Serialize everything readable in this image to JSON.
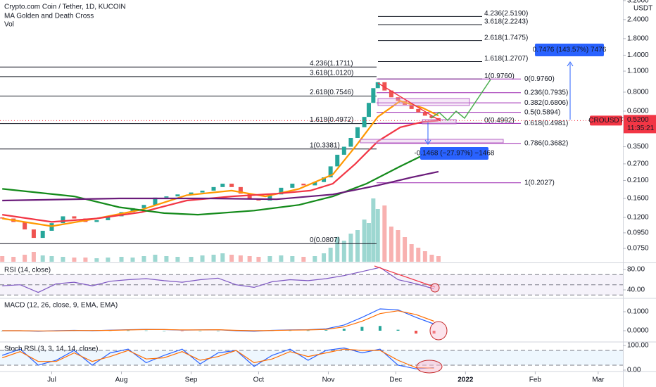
{
  "chart_data": [
    {
      "type": "candlestick",
      "title": "Crypto.com Coin / Tether, 1D, KUCOIN",
      "indicators": [
        "MA Golden and Death Cross",
        "Vol"
      ],
      "y_unit": "USDT",
      "log": true,
      "xlim": [
        -23,
        254
      ],
      "ylim": [
        0.0613,
        3.23
      ],
      "yticks": [
        {
          "value": 3.2,
          "label": "3.2000"
        },
        {
          "value": 2.4,
          "label": "2.4000"
        },
        {
          "value": 1.8,
          "label": "1.8000"
        },
        {
          "value": 1.4,
          "label": "1.4000"
        },
        {
          "value": 1.1,
          "label": "1.1000"
        },
        {
          "value": 0.8,
          "label": "0.8000"
        },
        {
          "value": 0.6,
          "label": "0.6000"
        },
        {
          "value": 0.35,
          "label": "0.3500"
        },
        {
          "value": 0.27,
          "label": "0.2700"
        },
        {
          "value": 0.21,
          "label": "0.2100"
        },
        {
          "value": 0.16,
          "label": "0.1600"
        },
        {
          "value": 0.12,
          "label": "0.1200"
        },
        {
          "value": 0.095,
          "label": "0.0950"
        },
        {
          "value": 0.075,
          "label": "0.0750"
        }
      ],
      "colors": {
        "up": "#26a69a",
        "down": "#ef5350"
      },
      "x": [
        -22,
        -17,
        -12,
        -8,
        -4,
        0,
        5,
        10,
        15,
        20,
        25,
        31,
        36,
        41,
        46,
        51,
        56,
        62,
        67,
        72,
        76,
        80,
        84,
        88,
        92,
        97,
        102,
        107,
        112,
        117,
        121,
        124,
        127,
        130,
        133,
        136,
        139,
        141,
        143,
        145,
        148,
        151,
        154,
        157,
        160,
        163,
        166,
        169,
        172
      ],
      "open": [
        0.12,
        0.118,
        0.112,
        0.1,
        0.088,
        0.098,
        0.11,
        0.122,
        0.118,
        0.112,
        0.115,
        0.122,
        0.13,
        0.138,
        0.145,
        0.162,
        0.165,
        0.17,
        0.175,
        0.18,
        0.19,
        0.2,
        0.19,
        0.172,
        0.158,
        0.155,
        0.17,
        0.188,
        0.2,
        0.195,
        0.205,
        0.22,
        0.26,
        0.31,
        0.35,
        0.4,
        0.47,
        0.55,
        0.68,
        0.85,
        0.93,
        0.82,
        0.74,
        0.7,
        0.66,
        0.62,
        0.59,
        0.56,
        0.54
      ],
      "close": [
        0.118,
        0.112,
        0.1,
        0.088,
        0.098,
        0.11,
        0.122,
        0.118,
        0.112,
        0.115,
        0.122,
        0.13,
        0.138,
        0.145,
        0.162,
        0.165,
        0.17,
        0.175,
        0.18,
        0.19,
        0.2,
        0.19,
        0.172,
        0.158,
        0.155,
        0.17,
        0.188,
        0.2,
        0.195,
        0.205,
        0.22,
        0.26,
        0.31,
        0.35,
        0.4,
        0.47,
        0.55,
        0.68,
        0.85,
        0.93,
        0.82,
        0.74,
        0.7,
        0.66,
        0.62,
        0.59,
        0.56,
        0.54,
        0.52
      ],
      "volume": [
        8,
        7,
        10,
        14,
        9,
        8,
        7,
        6,
        6,
        5,
        6,
        7,
        6,
        8,
        10,
        8,
        7,
        7,
        9,
        10,
        12,
        10,
        9,
        8,
        7,
        8,
        9,
        8,
        7,
        8,
        12,
        20,
        35,
        30,
        40,
        45,
        60,
        55,
        90,
        75,
        80,
        50,
        45,
        35,
        25,
        20,
        15,
        10,
        8
      ],
      "vlim": [
        0,
        100
      ],
      "series": [
        {
          "color": "#ff9800",
          "x": [
            -22,
            0,
            20,
            40,
            60,
            80,
            95,
            110,
            125,
            135,
            145,
            155,
            165,
            172
          ],
          "values": [
            0.118,
            0.105,
            0.118,
            0.135,
            0.168,
            0.18,
            0.165,
            0.185,
            0.23,
            0.35,
            0.55,
            0.7,
            0.63,
            0.56
          ]
        },
        {
          "color": "#f23645",
          "x": [
            -22,
            0,
            20,
            40,
            60,
            80,
            100,
            115,
            125,
            135,
            145,
            155,
            165,
            172
          ],
          "values": [
            0.125,
            0.112,
            0.118,
            0.13,
            0.155,
            0.165,
            0.172,
            0.18,
            0.2,
            0.27,
            0.38,
            0.47,
            0.51,
            0.52
          ]
        },
        {
          "color": "#138a1a",
          "x": [
            -22,
            10,
            30,
            50,
            65,
            90,
            110,
            125,
            140,
            155,
            172
          ],
          "values": [
            0.185,
            0.165,
            0.14,
            0.128,
            0.125,
            0.133,
            0.145,
            0.165,
            0.2,
            0.26,
            0.345
          ]
        },
        {
          "color": "#6a1b7a",
          "x": [
            -22,
            30,
            70,
            100,
            125,
            145,
            160,
            172
          ],
          "values": [
            0.155,
            0.16,
            0.16,
            0.158,
            0.17,
            0.195,
            0.22,
            0.24
          ]
        }
      ],
      "last_price": {
        "symbol": "CROUSDT",
        "value": 0.52,
        "label": "0.5200",
        "countdown": "11:35:21"
      },
      "fib_sets": [
        {
          "color": "#131722",
          "levels": [
            {
              "value": 1.1711,
              "label": "4.236(1.1711)"
            },
            {
              "value": 1.012,
              "label": "3.618(1.0120)"
            },
            {
              "value": 0.7546,
              "label": "2.618(0.7546)"
            },
            {
              "value": 0.4972,
              "label": "1.618(0.4972)"
            },
            {
              "value": 0.3381,
              "label": "1(0.3381)"
            },
            {
              "value": 0.0807,
              "label": "0(0.0807)"
            }
          ]
        },
        {
          "color": "#131722",
          "levels": [
            {
              "value": 2.519,
              "label": "4.236(2.5190)"
            },
            {
              "value": 2.2243,
              "label": "3.618(2.2243)"
            },
            {
              "value": 1.7475,
              "label": "2.618(1.7475)"
            },
            {
              "value": 1.2707,
              "label": "1.618(1.2707)"
            },
            {
              "value": 0.976,
              "label": "1(0.9760)"
            },
            {
              "value": 0.4992,
              "label": "0(0.4992)"
            }
          ]
        },
        {
          "color": "#9c27b0",
          "levels": [
            {
              "value": 0.976,
              "label": "0(0.9760)"
            },
            {
              "value": 0.7935,
              "label": "0.236(0.7935)"
            },
            {
              "value": 0.6806,
              "label": "0.382(0.6806)"
            },
            {
              "value": 0.5894,
              "label": "0.5(0.5894)"
            },
            {
              "value": 0.4981,
              "label": "0.618(0.4981)"
            },
            {
              "value": 0.3682,
              "label": "0.786(0.3682)"
            },
            {
              "value": 0.2027,
              "label": "1(0.2027)"
            }
          ]
        }
      ],
      "measures": [
        {
          "label": "0.7476 (143.57%) 7476"
        },
        {
          "label": "-0.1468 (−27.97%) −1468"
        }
      ]
    },
    {
      "type": "line",
      "title": "RSI (14, close)",
      "xlim": [
        -23,
        254
      ],
      "ylim": [
        24.8,
        91
      ],
      "yticks": [
        {
          "value": 80,
          "label": "80.00"
        },
        {
          "value": 40,
          "label": "40.00"
        }
      ],
      "bands": [
        70,
        50,
        30
      ],
      "x": [
        -22,
        -14,
        -6,
        2,
        10,
        18,
        26,
        34,
        42,
        50,
        58,
        66,
        74,
        82,
        90,
        98,
        106,
        114,
        122,
        130,
        138,
        146,
        154,
        162,
        170
      ],
      "series": [
        {
          "color": "#7e57c2",
          "values": [
            48,
            50,
            35,
            52,
            55,
            48,
            57,
            60,
            62,
            58,
            55,
            60,
            63,
            50,
            45,
            56,
            60,
            58,
            62,
            68,
            76,
            84,
            60,
            52,
            42
          ]
        }
      ]
    },
    {
      "type": "macd",
      "title": "MACD (12, 26, close, 9, EMA, EMA)",
      "xlim": [
        -23,
        254
      ],
      "ylim": [
        -0.0556,
        0.1667
      ],
      "yticks": [
        {
          "value": 0.1,
          "label": "0.1000"
        },
        {
          "value": 0,
          "label": "0.0000"
        }
      ],
      "colors": {
        "up": "#26a69a",
        "down": "#ef5350"
      },
      "x": [
        -22,
        -14,
        -6,
        2,
        10,
        18,
        26,
        34,
        42,
        50,
        58,
        66,
        74,
        82,
        90,
        98,
        106,
        114,
        122,
        130,
        138,
        146,
        154,
        162,
        170
      ],
      "histogram": [
        0,
        0,
        -0.002,
        0.001,
        0.001,
        -0.001,
        0.001,
        0.001,
        0.001,
        0,
        -0.001,
        0,
        0,
        -0.002,
        -0.003,
        0.001,
        0.001,
        0.001,
        0.003,
        0.01,
        0.02,
        0.025,
        0.005,
        -0.015,
        -0.015
      ],
      "series": [
        {
          "color": "#2962ff",
          "values": [
            0,
            0,
            -0.003,
            0,
            0.002,
            0,
            0.003,
            0.005,
            0.007,
            0.006,
            0.003,
            0.004,
            0.005,
            0,
            -0.003,
            0.002,
            0.004,
            0.005,
            0.01,
            0.03,
            0.07,
            0.115,
            0.11,
            0.07,
            0.035
          ]
        },
        {
          "color": "#ff6d00",
          "values": [
            0,
            0,
            -0.001,
            -0.001,
            0.001,
            0.001,
            0.002,
            0.004,
            0.006,
            0.006,
            0.004,
            0.004,
            0.005,
            0.002,
            0,
            0.001,
            0.003,
            0.004,
            0.007,
            0.02,
            0.05,
            0.09,
            0.105,
            0.085,
            0.05
          ]
        }
      ]
    },
    {
      "type": "line",
      "title": "Stoch RSI (3, 3, 14, 14, close)",
      "xlim": [
        -23,
        254
      ],
      "ylim": [
        -2.9,
        111.4
      ],
      "yticks": [
        {
          "value": 100,
          "label": "100.00"
        },
        {
          "value": 0,
          "label": "0.00"
        }
      ],
      "bands": [
        80,
        20
      ],
      "xticks": [
        {
          "value": 0,
          "label": "Jul"
        },
        {
          "value": 31,
          "label": "Aug"
        },
        {
          "value": 62,
          "label": "Sep"
        },
        {
          "value": 92,
          "label": "Oct"
        },
        {
          "value": 123,
          "label": "Nov"
        },
        {
          "value": 153,
          "label": "Dec"
        },
        {
          "value": 184,
          "label": "2022"
        },
        {
          "value": 215,
          "label": "Feb"
        },
        {
          "value": 243,
          "label": "Mar"
        }
      ],
      "x": [
        -22,
        -14,
        -6,
        2,
        10,
        18,
        26,
        34,
        42,
        50,
        58,
        66,
        74,
        82,
        90,
        98,
        106,
        114,
        122,
        130,
        138,
        146,
        154,
        162,
        170
      ],
      "series": [
        {
          "color": "#2962ff",
          "values": [
            60,
            85,
            20,
            40,
            80,
            20,
            70,
            85,
            30,
            60,
            85,
            25,
            70,
            80,
            15,
            60,
            85,
            40,
            80,
            90,
            70,
            85,
            20,
            5,
            10
          ]
        },
        {
          "color": "#ff6d00",
          "values": [
            50,
            75,
            35,
            35,
            70,
            35,
            55,
            80,
            45,
            50,
            75,
            40,
            55,
            80,
            30,
            45,
            75,
            55,
            70,
            85,
            80,
            80,
            40,
            10,
            8
          ]
        }
      ]
    }
  ]
}
